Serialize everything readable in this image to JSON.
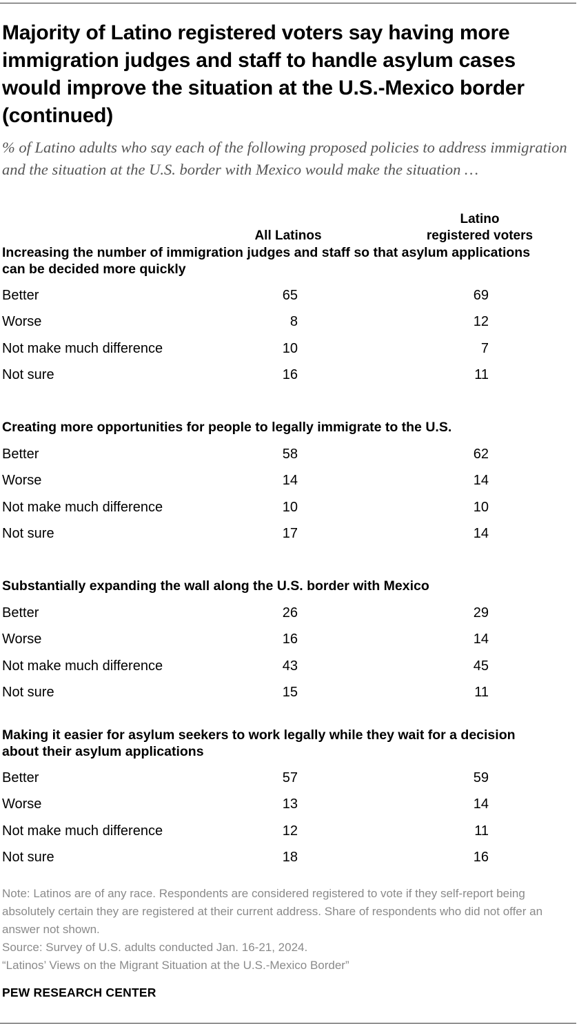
{
  "title": "Majority of Latino registered voters say having more immigration judges and staff to handle asylum cases would improve the situation at the U.S.-Mexico border (continued)",
  "subtitle": "% of Latino adults who say each of the following proposed policies to address immigration and the situation at the U.S. border with Mexico would make the situation …",
  "columns": {
    "all": "All Latinos",
    "voters_line1": "Latino",
    "voters_line2": "registered voters"
  },
  "chart_data": {
    "type": "table",
    "columns": [
      "All Latinos",
      "Latino registered voters"
    ],
    "sections": [
      {
        "question": "Increasing the number of immigration judges and staff so that asylum applications can be decided more quickly",
        "rows": [
          {
            "label": "Better",
            "all": "65",
            "voters": "69"
          },
          {
            "label": "Worse",
            "all": "8",
            "voters": "12"
          },
          {
            "label": "Not make much difference",
            "all": "10",
            "voters": "7"
          },
          {
            "label": "Not sure",
            "all": "16",
            "voters": "11"
          }
        ]
      },
      {
        "question": "Creating more opportunities for people to legally immigrate to the U.S.",
        "rows": [
          {
            "label": "Better",
            "all": "58",
            "voters": "62"
          },
          {
            "label": "Worse",
            "all": "14",
            "voters": "14"
          },
          {
            "label": "Not make much difference",
            "all": "10",
            "voters": "10"
          },
          {
            "label": "Not sure",
            "all": "17",
            "voters": "14"
          }
        ]
      },
      {
        "question": "Substantially expanding the wall along the U.S. border with Mexico",
        "rows": [
          {
            "label": "Better",
            "all": "26",
            "voters": "29"
          },
          {
            "label": "Worse",
            "all": "16",
            "voters": "14"
          },
          {
            "label": "Not make much difference",
            "all": "43",
            "voters": "45"
          },
          {
            "label": "Not sure",
            "all": "15",
            "voters": "11"
          }
        ]
      },
      {
        "question": "Making it easier for asylum seekers to work legally while they wait for a decision about their asylum applications",
        "rows": [
          {
            "label": "Better",
            "all": "57",
            "voters": "59"
          },
          {
            "label": "Worse",
            "all": "13",
            "voters": "14"
          },
          {
            "label": "Not make much difference",
            "all": "12",
            "voters": "11"
          },
          {
            "label": "Not sure",
            "all": "18",
            "voters": "16"
          }
        ]
      }
    ]
  },
  "notes": {
    "note": "Note: Latinos are of any race. Respondents are considered registered to vote if they self-report being absolutely certain they are registered at their current address. Share of respondents who did not offer an answer not shown.",
    "source": "Source: Survey of U.S. adults conducted Jan. 16-21, 2024.",
    "report": "“Latinos’ Views on the Migrant Situation at the U.S.-Mexico Border”"
  },
  "brand": "PEW RESEARCH CENTER"
}
